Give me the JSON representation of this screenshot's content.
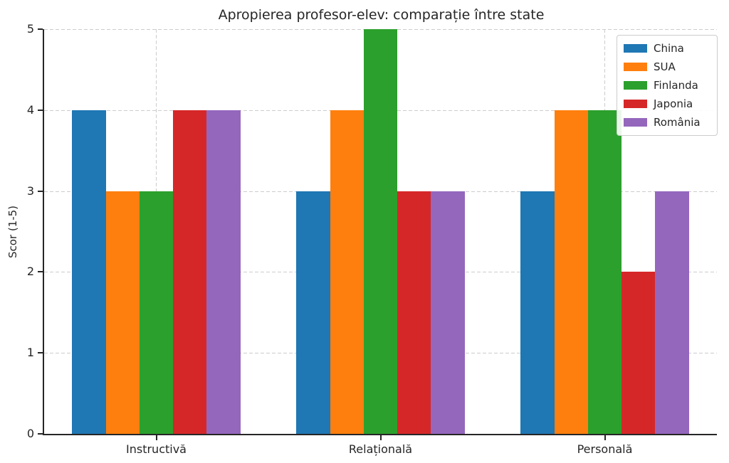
{
  "chart_data": {
    "type": "bar",
    "title": "Apropierea profesor-elev: comparație între state",
    "xlabel": "",
    "ylabel": "Scor (1-5)",
    "categories": [
      "Instructivă",
      "Relațională",
      "Personală"
    ],
    "series": [
      {
        "name": "China",
        "color": "#1f77b4",
        "values": [
          4,
          3,
          3
        ]
      },
      {
        "name": "SUA",
        "color": "#ff7f0e",
        "values": [
          3,
          4,
          4
        ]
      },
      {
        "name": "Finlanda",
        "color": "#2ca02c",
        "values": [
          3,
          5,
          4
        ]
      },
      {
        "name": "Japonia",
        "color": "#d62728",
        "values": [
          4,
          3,
          2
        ]
      },
      {
        "name": "România",
        "color": "#9467bd",
        "values": [
          4,
          3,
          3
        ]
      }
    ],
    "ylim": [
      0,
      5
    ],
    "yticks": [
      0,
      1,
      2,
      3,
      4,
      5
    ],
    "grid": true,
    "grid_style": "dashed",
    "legend_position": "upper right",
    "bar_width_data_units": 0.15
  }
}
